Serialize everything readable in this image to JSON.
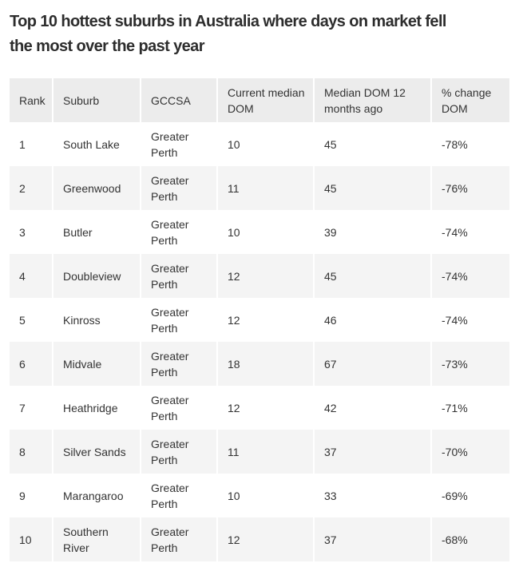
{
  "page": {
    "title": {
      "line1": "Top 10 hottest suburbs in Australia where days on market fell",
      "line2": "the most over the past year"
    }
  },
  "colors": {
    "header_bg": "#ececec",
    "row_stripe_bg": "#f4f4f4",
    "cell_text": "#333333",
    "title_text": "#2d2d2d",
    "column_separator": "#ffffff"
  },
  "chart_data": {
    "type": "table",
    "title": "Top 10 hottest suburbs in Australia where days on market fell the most over the past year",
    "columns": [
      "Rank",
      "Suburb",
      "GCCSA",
      "Current median DOM",
      "Median DOM 12 months ago",
      "% change DOM"
    ],
    "rows": [
      [
        1,
        "South Lake",
        "Greater Perth",
        10,
        45,
        "-78%"
      ],
      [
        2,
        "Greenwood",
        "Greater Perth",
        11,
        45,
        "-76%"
      ],
      [
        3,
        "Butler",
        "Greater Perth",
        10,
        39,
        "-74%"
      ],
      [
        4,
        "Doubleview",
        "Greater Perth",
        12,
        45,
        "-74%"
      ],
      [
        5,
        "Kinross",
        "Greater Perth",
        12,
        46,
        "-74%"
      ],
      [
        6,
        "Midvale",
        "Greater Perth",
        18,
        67,
        "-73%"
      ],
      [
        7,
        "Heathridge",
        "Greater Perth",
        12,
        42,
        "-71%"
      ],
      [
        8,
        "Silver Sands",
        "Greater Perth",
        11,
        37,
        "-70%"
      ],
      [
        9,
        "Marangaroo",
        "Greater Perth",
        10,
        33,
        "-69%"
      ],
      [
        10,
        "Southern River",
        "Greater Perth",
        12,
        37,
        "-68%"
      ]
    ]
  }
}
